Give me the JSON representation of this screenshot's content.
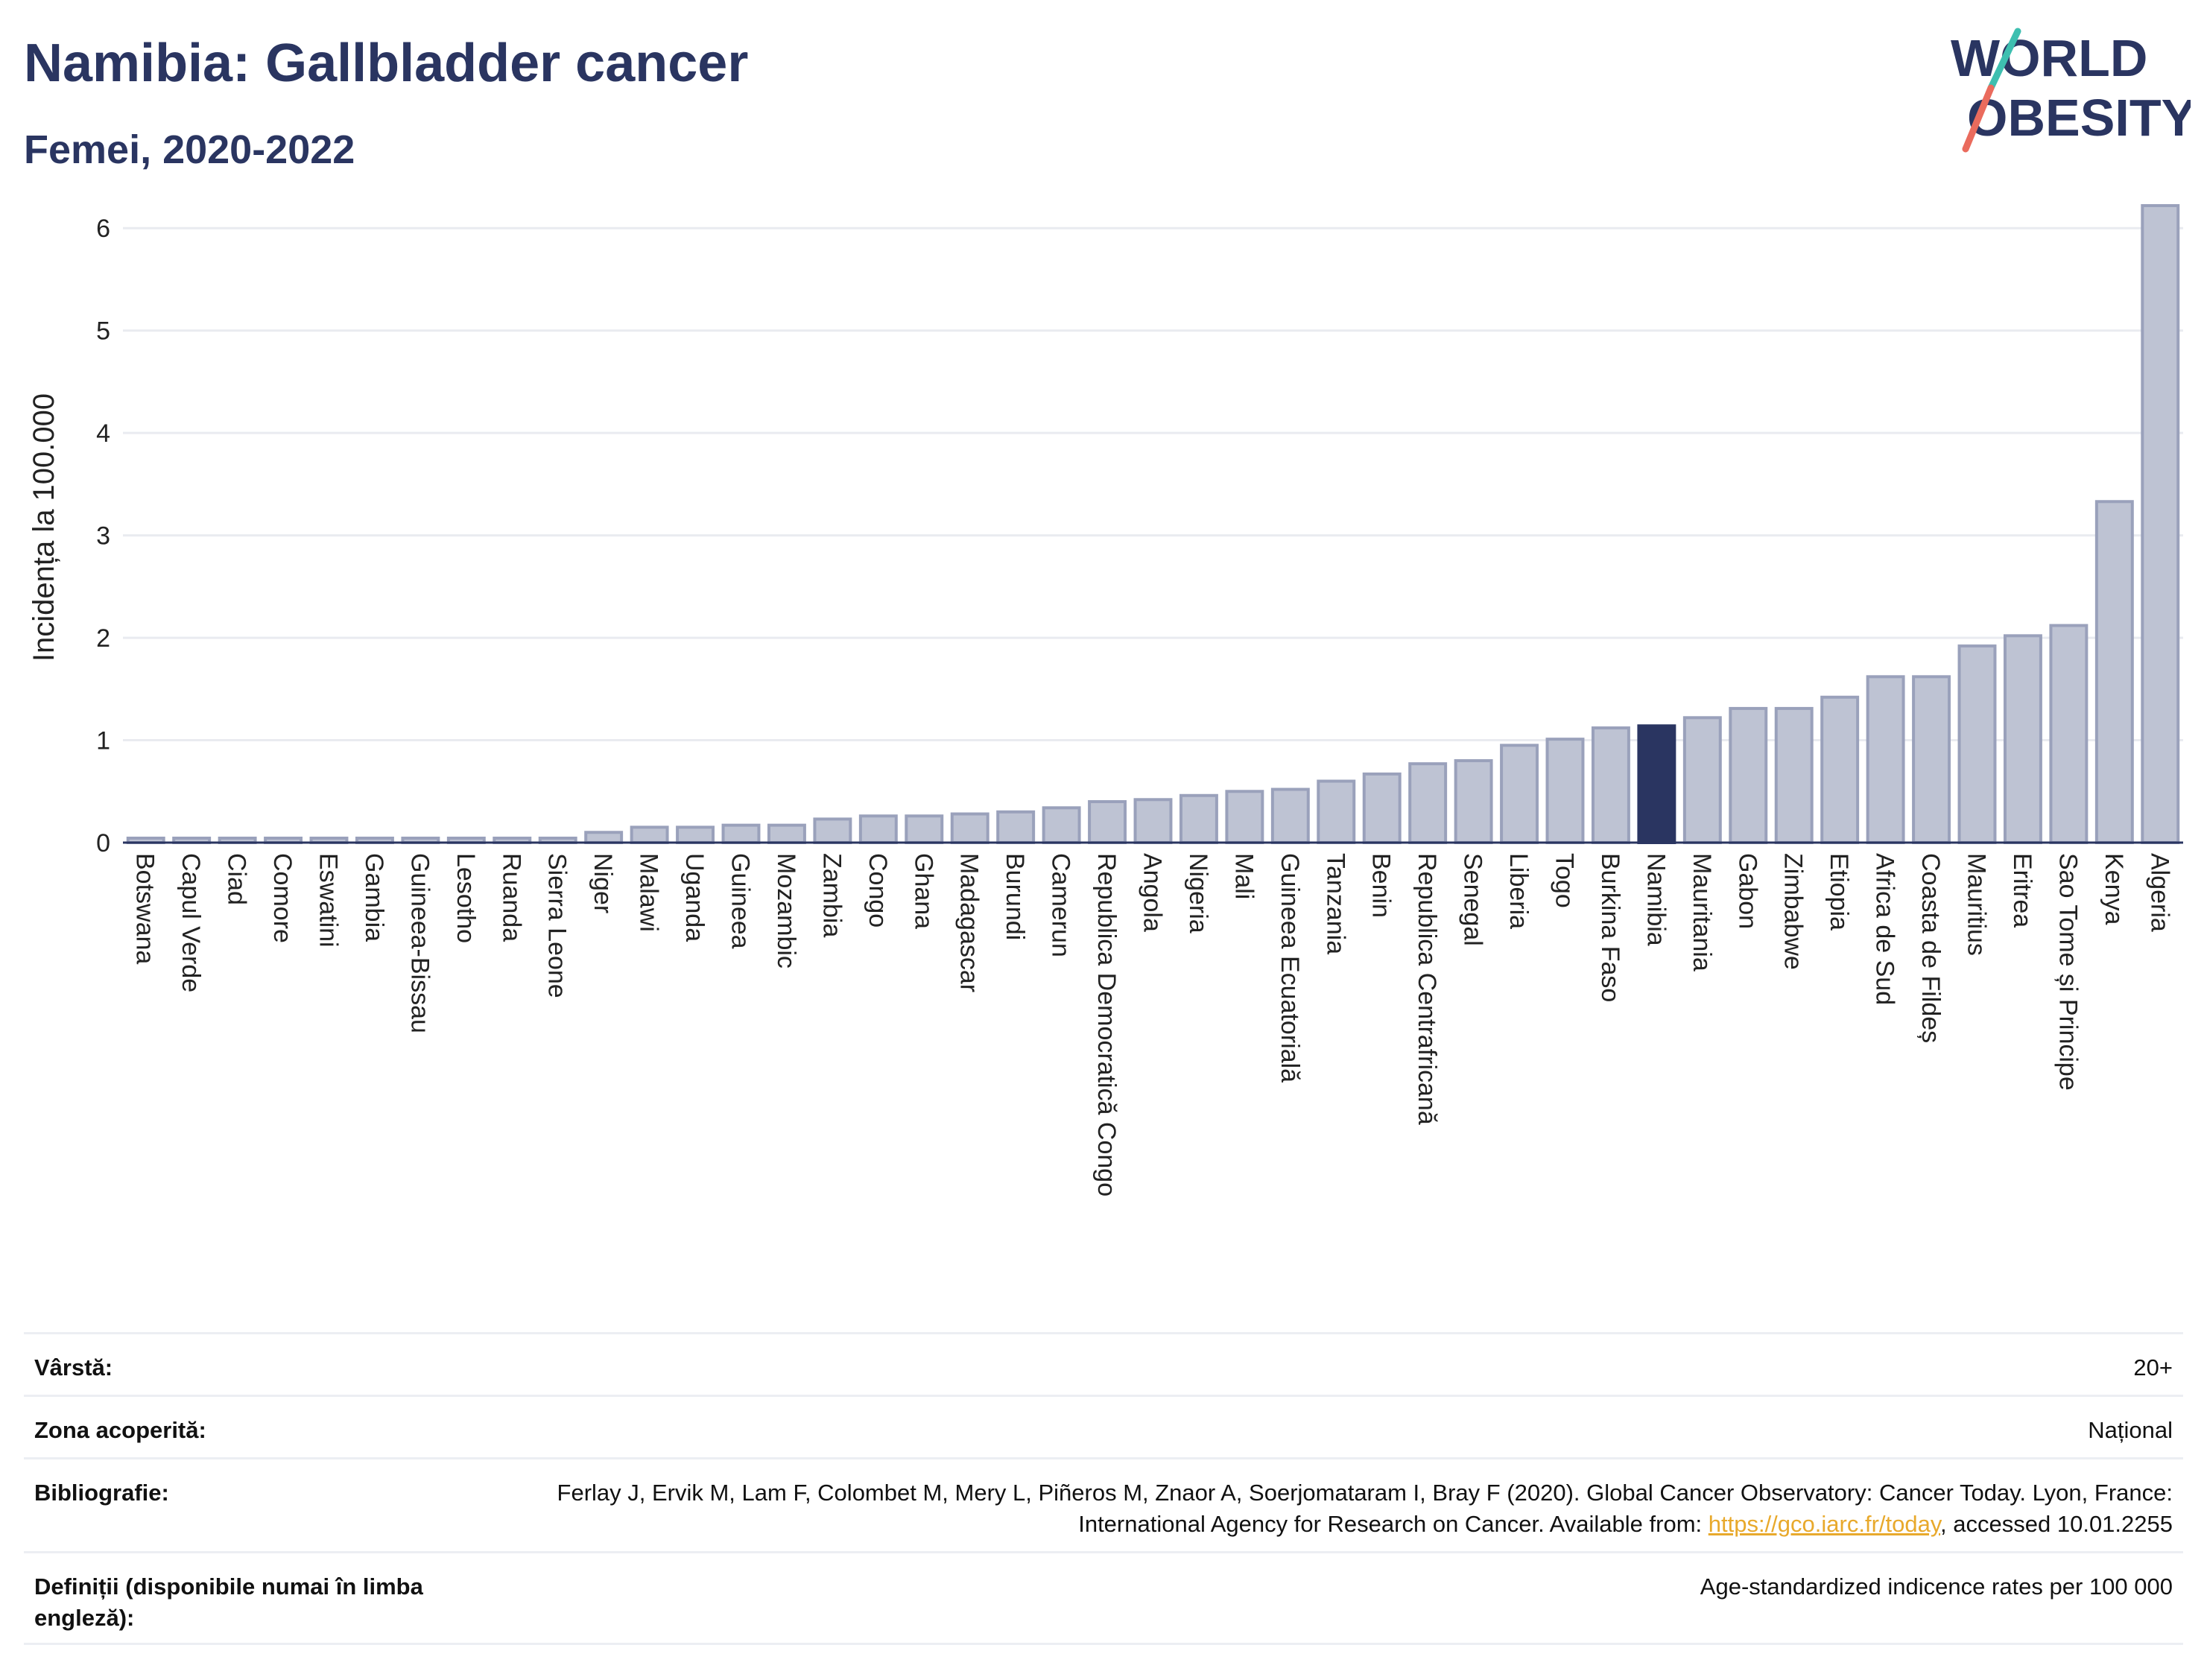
{
  "header": {
    "title": "Namibia: Gallbladder cancer",
    "subtitle": "Femei, 2020-2022"
  },
  "logo": {
    "line1": "WORLD",
    "line2": "OBESITY",
    "colors": {
      "text": "#2a3561",
      "slash_top": "#3ebfb0",
      "slash_bottom": "#ea6b5d"
    }
  },
  "colors": {
    "bar": "#bec3d3",
    "bar_stroke": "#9aa1bb",
    "highlight": "#2a3561",
    "grid": "#e9ebf0",
    "axis": "#2a3561"
  },
  "chart_data": {
    "type": "bar",
    "ylabel": "Incidența la 100.000",
    "ylim": [
      0,
      6.3
    ],
    "yticks": [
      0,
      1,
      2,
      3,
      4,
      5,
      6
    ],
    "grid": true,
    "highlight": "Namibia",
    "categories": [
      "Botswana",
      "Capul Verde",
      "Ciad",
      "Comore",
      "Eswatini",
      "Gambia",
      "Guineea-Bissau",
      "Lesotho",
      "Ruanda",
      "Sierra Leone",
      "Niger",
      "Malawi",
      "Uganda",
      "Guineea",
      "Mozambic",
      "Zambia",
      "Congo",
      "Ghana",
      "Madagascar",
      "Burundi",
      "Camerun",
      "Republica Democratică Congo",
      "Angola",
      "Nigeria",
      "Mali",
      "Guineea Ecuatorială",
      "Tanzania",
      "Benin",
      "Republica Centrafricană",
      "Senegal",
      "Liberia",
      "Togo",
      "Burkina Faso",
      "Namibia",
      "Mauritania",
      "Gabon",
      "Zimbabwe",
      "Etiopia",
      "Africa de Sud",
      "Coasta de Fildeș",
      "Mauritius",
      "Eritrea",
      "Sao Tome și Principe",
      "Kenya",
      "Algeria"
    ],
    "values": [
      0.02,
      0.02,
      0.02,
      0.02,
      0.02,
      0.02,
      0.02,
      0.02,
      0.02,
      0.02,
      0.1,
      0.15,
      0.15,
      0.17,
      0.17,
      0.23,
      0.26,
      0.26,
      0.28,
      0.3,
      0.34,
      0.4,
      0.42,
      0.46,
      0.5,
      0.52,
      0.6,
      0.67,
      0.77,
      0.8,
      0.95,
      1.01,
      1.12,
      1.14,
      1.22,
      1.31,
      1.31,
      1.42,
      1.62,
      1.62,
      1.92,
      2.02,
      2.12,
      3.33,
      6.22
    ]
  },
  "info": {
    "age_label": "Vârstă:",
    "age_value": "20+",
    "zone_label": "Zona acoperită:",
    "zone_value": "Național",
    "bib_label": "Bibliografie:",
    "bib_text_1": "Ferlay J, Ervik M, Lam F, Colombet M, Mery L, Piñeros M, Znaor A, Soerjomataram I, Bray F (2020). Global Cancer Observatory: Cancer Today. Lyon, France: International Agency for Research on Cancer. Available from: ",
    "bib_link": "https://gco.iarc.fr/today",
    "bib_text_2": ", accessed 10.01.2255",
    "def_label": "Definiții (disponibile numai în limba engleză):",
    "def_value": "Age-standardized indicence rates per 100 000"
  }
}
